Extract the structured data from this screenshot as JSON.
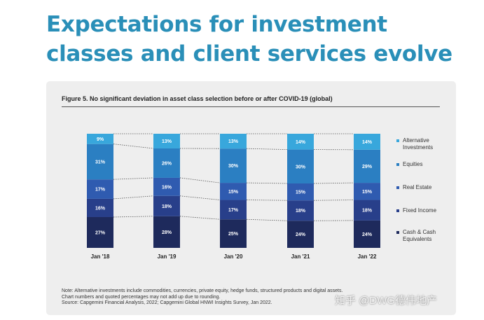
{
  "headline": "Expectations for investment classes and client services evolve",
  "figure_title": "Figure 5. No significant deviation in asset class selection before or after COVID-19 (global)",
  "notes": [
    "Note: Alternative investments include commodities, currencies, private equity, hedge funds, structured products and digital assets.",
    "Chart numbers and quoted percentages may not add up due to rounding.",
    "Source: Capgemini Financial Analysis, 2022; Capgemini Global HNWI Insights Survey, Jan 2022."
  ],
  "watermark": "知乎 @DWG德伟地产",
  "chart_data": {
    "type": "bar",
    "stacked": true,
    "percent_stacked": true,
    "categories": [
      "Jan '18",
      "Jan '19",
      "Jan '20",
      "Jan '21",
      "Jan '22"
    ],
    "series": [
      {
        "name": "Cash & Cash Equivalents",
        "color": "#1e2a5c",
        "values": [
          27,
          28,
          25,
          24,
          24
        ],
        "labels": [
          "27%",
          "28%",
          "25%",
          "24%",
          "24%"
        ]
      },
      {
        "name": "Fixed Income",
        "color": "#283f8a",
        "values": [
          16,
          18,
          17,
          18,
          18
        ],
        "labels": [
          "16%",
          "18%",
          "17%",
          "18%",
          "18%"
        ]
      },
      {
        "name": "Real Estate",
        "color": "#2f5bb0",
        "values": [
          17,
          16,
          15,
          15,
          15
        ],
        "labels": [
          "17%",
          "16%",
          "15%",
          "15%",
          "15%"
        ]
      },
      {
        "name": "Equities",
        "color": "#2b7fc2",
        "values": [
          31,
          26,
          30,
          30,
          29
        ],
        "labels": [
          "31%",
          "26%",
          "30%",
          "30%",
          "29%"
        ]
      },
      {
        "name": "Alternative Investments",
        "color": "#38a7dc",
        "values": [
          9,
          13,
          13,
          14,
          14
        ],
        "labels": [
          "9%",
          "13%",
          "13%",
          "14%",
          "14%"
        ]
      }
    ],
    "legend_order": [
      {
        "lines": [
          "Alternative",
          "Investments"
        ],
        "color": "#38a7dc"
      },
      {
        "lines": [
          "Equities"
        ],
        "color": "#2b7fc2"
      },
      {
        "lines": [
          "Real Estate"
        ],
        "color": "#2f5bb0"
      },
      {
        "lines": [
          "Fixed Income"
        ],
        "color": "#283f8a"
      },
      {
        "lines": [
          "Cash & Cash",
          "Equivalents"
        ],
        "color": "#1e2a5c"
      }
    ],
    "connector_lines": "dotted",
    "legend_position": "right",
    "grid": false
  }
}
